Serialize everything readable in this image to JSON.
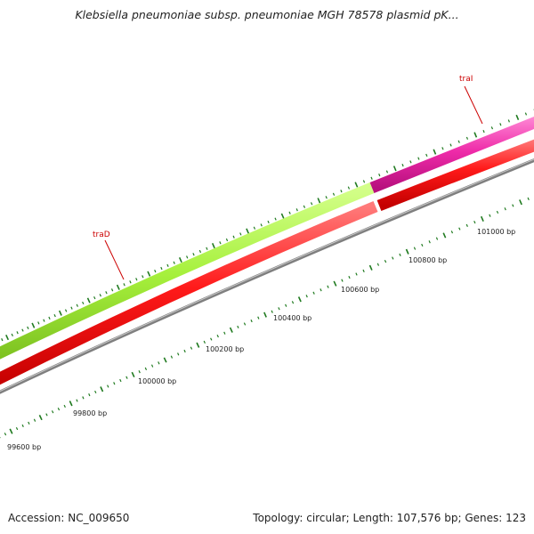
{
  "header": {
    "title": "Klebsiella pneumoniae subsp. pneumoniae MGH 78578 plasmid pK..."
  },
  "footer": {
    "accession": "Accession: NC_009650",
    "summary": "Topology: circular; Length: 107,576 bp; Genes: 123"
  },
  "map": {
    "tick_labels": [
      "99600 bp",
      "99800 bp",
      "100000 bp",
      "100200 bp",
      "100400 bp",
      "100600 bp",
      "100800 bp",
      "101000 bp"
    ],
    "genes": [
      {
        "name": "traD",
        "color": "#a6f03c",
        "strand": "forward"
      },
      {
        "name": "traI",
        "color": "#ee2aa8",
        "strand": "forward"
      }
    ],
    "orf_color": "#ee1111",
    "backbone_color": "#7f7f7f",
    "tick_color": "#1f7a1f"
  }
}
